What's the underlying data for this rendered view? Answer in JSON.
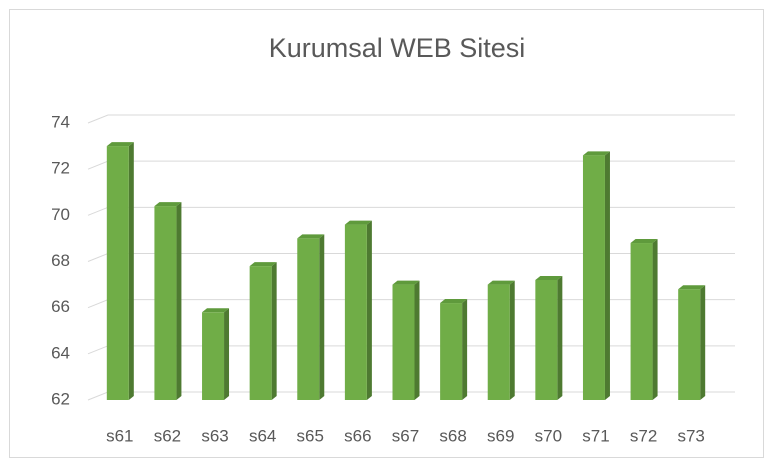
{
  "chart_data": {
    "type": "bar",
    "title": "Kurumsal WEB Sitesi",
    "categories": [
      "s61",
      "s62",
      "s63",
      "s64",
      "s65",
      "s66",
      "s67",
      "s68",
      "s69",
      "s70",
      "s71",
      "s72",
      "s73"
    ],
    "values": [
      73.0,
      70.4,
      65.8,
      67.8,
      69.0,
      69.6,
      67.0,
      66.2,
      67.0,
      67.2,
      72.6,
      68.8,
      66.8
    ],
    "color": "#70ad47",
    "ylim": [
      62,
      74
    ],
    "yticks": [
      62,
      64,
      66,
      68,
      70,
      72,
      74
    ],
    "grid": true
  }
}
